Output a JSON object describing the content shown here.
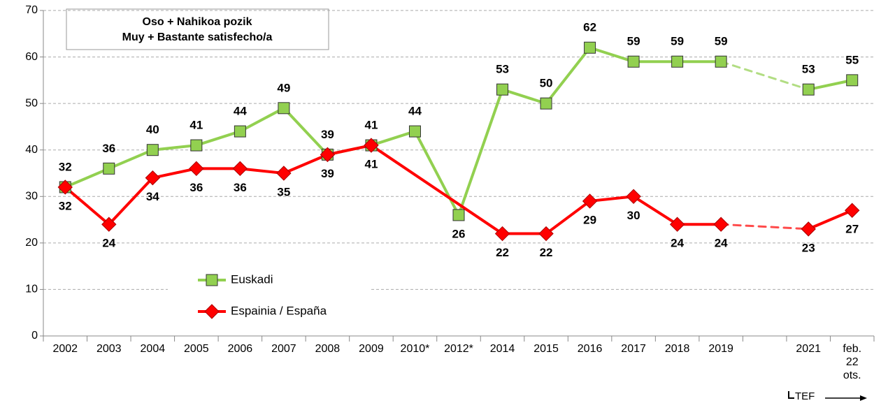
{
  "chart_data": {
    "type": "line",
    "title": "Oso + Nahikoa pozik",
    "subtitle": "Muy + Bastante satisfecho/a",
    "categories": [
      "2002",
      "2003",
      "2004",
      "2005",
      "2006",
      "2007",
      "2008",
      "2009",
      "2010*",
      "2012*",
      "2014",
      "2015",
      "2016",
      "2017",
      "2018",
      "2019",
      null,
      "2021",
      "feb. 22 ots."
    ],
    "series": [
      {
        "name": "Euskadi",
        "color": "#92d050",
        "marker": "square",
        "values": [
          32,
          36,
          40,
          41,
          44,
          49,
          39,
          41,
          44,
          26,
          53,
          50,
          62,
          59,
          59,
          59,
          null,
          53,
          55
        ]
      },
      {
        "name": "Espainia / España",
        "color": "#ff0000",
        "marker": "diamond",
        "values": [
          32,
          24,
          34,
          36,
          36,
          35,
          39,
          41,
          null,
          null,
          22,
          22,
          29,
          30,
          24,
          24,
          null,
          23,
          27
        ]
      }
    ],
    "ylim": [
      0,
      70
    ],
    "yticks": [
      0,
      10,
      20,
      30,
      40,
      50,
      60,
      70
    ],
    "grid": true,
    "annotation": "TEF"
  }
}
